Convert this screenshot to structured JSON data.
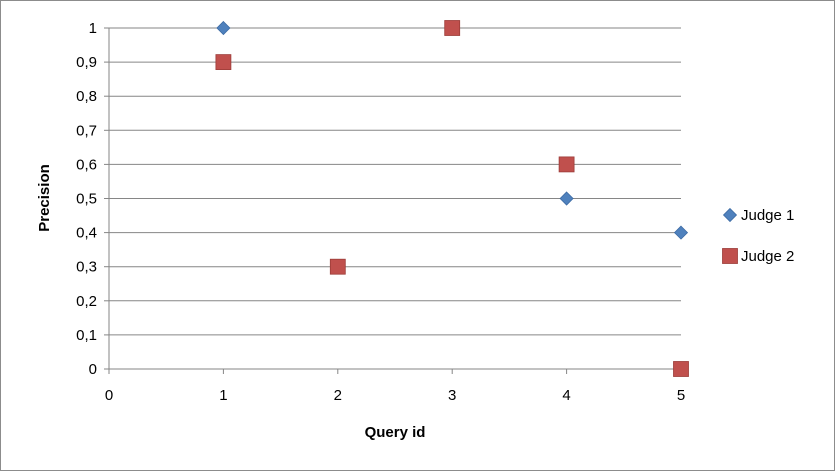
{
  "chart_data": {
    "type": "scatter",
    "title": "",
    "xlabel": "Query id",
    "ylabel": "Precision",
    "xlim": [
      0,
      5
    ],
    "ylim": [
      0,
      1
    ],
    "x_ticks": [
      "0",
      "1",
      "2",
      "3",
      "4",
      "5"
    ],
    "y_ticks": [
      "0",
      "0,1",
      "0,2",
      "0,3",
      "0,4",
      "0,5",
      "0,6",
      "0,7",
      "0,8",
      "0,9",
      "1"
    ],
    "grid": "horizontal",
    "legend_position": "right",
    "series": [
      {
        "name": "Judge 1",
        "marker": "diamond",
        "color": "#4f81bd",
        "points": [
          {
            "x": 1,
            "y": 1
          },
          {
            "x": 4,
            "y": 0.5
          },
          {
            "x": 5,
            "y": 0.4
          }
        ]
      },
      {
        "name": "Judge 2",
        "marker": "square",
        "color": "#c0504d",
        "points": [
          {
            "x": 1,
            "y": 0.9
          },
          {
            "x": 2,
            "y": 0.3
          },
          {
            "x": 3,
            "y": 1
          },
          {
            "x": 4,
            "y": 0.6
          },
          {
            "x": 5,
            "y": 0
          }
        ]
      }
    ]
  }
}
